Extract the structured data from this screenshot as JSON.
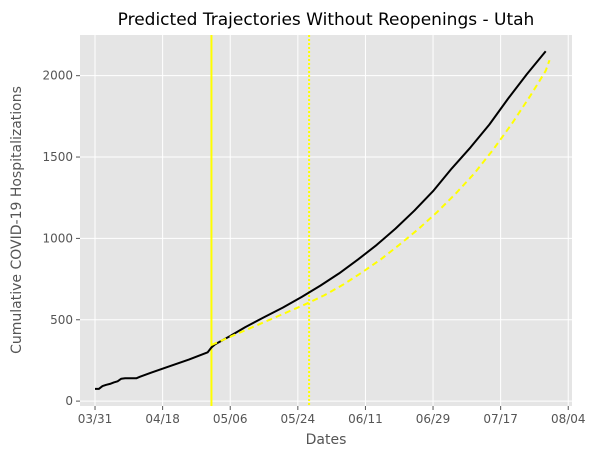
{
  "chart_data": {
    "type": "line",
    "title": "Predicted Trajectories Without Reopenings - Utah",
    "xlabel": "Dates",
    "ylabel": "Cumulative COVID-19 Hospitalizations",
    "x_ticks": [
      "2020-03-31",
      "2020-04-18",
      "2020-05-06",
      "2020-05-24",
      "2020-06-11",
      "2020-06-29",
      "2020-07-17",
      "2020-08-04"
    ],
    "x_tick_labels": [
      "03/31",
      "04/18",
      "05/06",
      "05/24",
      "06/11",
      "06/29",
      "07/17",
      "08/04"
    ],
    "xlim": [
      "2020-03-27",
      "2020-08-05"
    ],
    "y_ticks": [
      0,
      500,
      1000,
      1500,
      2000
    ],
    "y_tick_labels": [
      "0",
      "500",
      "1000",
      "1500",
      "2000"
    ],
    "ylim": [
      -30,
      2250
    ],
    "grid": true,
    "vlines": [
      {
        "x": "2020-05-01",
        "color": "#ffff00",
        "style": "solid"
      },
      {
        "x": "2020-05-27",
        "color": "#ffff00",
        "style": "dotted"
      }
    ],
    "series": [
      {
        "color": "#000000",
        "style": "solid",
        "points": [
          [
            "2020-03-31",
            75
          ],
          [
            "2020-04-01",
            75
          ],
          [
            "2020-04-02",
            92
          ],
          [
            "2020-04-03",
            100
          ],
          [
            "2020-04-04",
            106
          ],
          [
            "2020-04-05",
            115
          ],
          [
            "2020-04-06",
            122
          ],
          [
            "2020-04-07",
            138
          ],
          [
            "2020-04-08",
            140
          ],
          [
            "2020-04-09",
            140
          ],
          [
            "2020-04-10",
            140
          ],
          [
            "2020-04-11",
            140
          ],
          [
            "2020-04-12",
            150
          ],
          [
            "2020-04-15",
            175
          ],
          [
            "2020-04-20",
            215
          ],
          [
            "2020-04-25",
            255
          ],
          [
            "2020-04-30",
            300
          ],
          [
            "2020-05-01",
            330
          ],
          [
            "2020-05-02",
            350
          ],
          [
            "2020-05-06",
            400
          ],
          [
            "2020-05-10",
            455
          ],
          [
            "2020-05-15",
            515
          ],
          [
            "2020-05-20",
            575
          ],
          [
            "2020-05-25",
            640
          ],
          [
            "2020-05-30",
            710
          ],
          [
            "2020-06-04",
            785
          ],
          [
            "2020-06-09",
            870
          ],
          [
            "2020-06-14",
            960
          ],
          [
            "2020-06-19",
            1060
          ],
          [
            "2020-06-24",
            1170
          ],
          [
            "2020-06-29",
            1290
          ],
          [
            "2020-07-04",
            1430
          ],
          [
            "2020-07-09",
            1560
          ],
          [
            "2020-07-14",
            1700
          ],
          [
            "2020-07-19",
            1860
          ],
          [
            "2020-07-24",
            2010
          ],
          [
            "2020-07-29",
            2150
          ]
        ]
      },
      {
        "color": "#ffff00",
        "style": "dashed",
        "points": [
          [
            "2020-05-01",
            345
          ],
          [
            "2020-05-06",
            395
          ],
          [
            "2020-05-11",
            445
          ],
          [
            "2020-05-16",
            495
          ],
          [
            "2020-05-21",
            545
          ],
          [
            "2020-05-26",
            595
          ],
          [
            "2020-05-31",
            650
          ],
          [
            "2020-06-05",
            715
          ],
          [
            "2020-06-10",
            790
          ],
          [
            "2020-06-15",
            870
          ],
          [
            "2020-06-20",
            960
          ],
          [
            "2020-06-25",
            1055
          ],
          [
            "2020-06-30",
            1160
          ],
          [
            "2020-07-05",
            1275
          ],
          [
            "2020-07-10",
            1400
          ],
          [
            "2020-07-15",
            1545
          ],
          [
            "2020-07-20",
            1705
          ],
          [
            "2020-07-25",
            1880
          ],
          [
            "2020-07-29",
            2030
          ],
          [
            "2020-07-30",
            2095
          ]
        ]
      }
    ]
  }
}
